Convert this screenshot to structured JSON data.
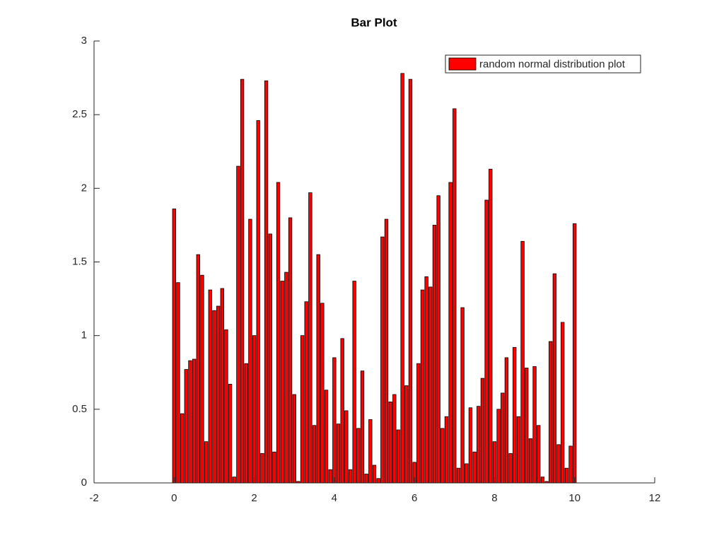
{
  "chart_data": {
    "type": "bar",
    "title": "Bar Plot",
    "x": [
      0,
      0.1,
      0.2,
      0.3,
      0.4,
      0.5,
      0.6,
      0.7,
      0.8,
      0.9,
      1,
      1.1,
      1.2,
      1.3,
      1.4,
      1.5,
      1.6,
      1.7,
      1.8,
      1.9,
      2,
      2.1,
      2.2,
      2.3,
      2.4,
      2.5,
      2.6,
      2.7,
      2.8,
      2.9,
      3,
      3.1,
      3.2,
      3.3,
      3.4,
      3.5,
      3.6,
      3.7,
      3.8,
      3.9,
      4,
      4.1,
      4.2,
      4.3,
      4.4,
      4.5,
      4.6,
      4.7,
      4.8,
      4.9,
      5,
      5.1,
      5.2,
      5.3,
      5.4,
      5.5,
      5.6,
      5.7,
      5.8,
      5.9,
      6,
      6.1,
      6.2,
      6.3,
      6.4,
      6.5,
      6.6,
      6.7,
      6.8,
      6.9,
      7,
      7.1,
      7.2,
      7.3,
      7.4,
      7.5,
      7.6,
      7.7,
      7.8,
      7.9,
      8,
      8.1,
      8.2,
      8.3,
      8.4,
      8.5,
      8.6,
      8.7,
      8.8,
      8.9,
      9,
      9.1,
      9.2,
      9.3,
      9.4,
      9.5,
      9.6,
      9.7,
      9.8,
      9.9,
      10
    ],
    "series": [
      {
        "name": "random normal distribution plot",
        "color": "#ff0000",
        "values": [
          1.86,
          1.36,
          0.47,
          0.77,
          0.83,
          0.84,
          1.55,
          1.41,
          0.28,
          1.31,
          1.17,
          1.2,
          1.32,
          1.04,
          0.67,
          0.04,
          2.15,
          2.74,
          0.81,
          1.79,
          1.0,
          2.46,
          0.2,
          2.73,
          1.69,
          0.21,
          2.04,
          1.37,
          1.43,
          1.8,
          0.6,
          0.01,
          1.0,
          1.23,
          1.97,
          0.39,
          1.55,
          1.22,
          0.63,
          0.09,
          0.85,
          0.4,
          0.98,
          0.49,
          0.09,
          1.37,
          0.37,
          0.76,
          0.06,
          0.43,
          0.12,
          0.03,
          1.67,
          1.79,
          0.55,
          0.6,
          0.36,
          2.78,
          0.66,
          2.74,
          0.14,
          0.81,
          1.31,
          1.4,
          1.33,
          1.75,
          1.95,
          0.37,
          0.45,
          2.04,
          2.54,
          0.1,
          1.19,
          0.13,
          0.51,
          0.21,
          0.52,
          0.71,
          1.92,
          2.13,
          0.28,
          0.5,
          0.61,
          0.85,
          0.2,
          0.92,
          0.45,
          1.64,
          0.78,
          0.3,
          0.79,
          0.39,
          0.04,
          0.01,
          0.96,
          1.42,
          0.26,
          1.09,
          0.1,
          0.25,
          1.76
        ]
      }
    ],
    "xlim": [
      -2,
      12
    ],
    "xticks": [
      -2,
      0,
      2,
      4,
      6,
      8,
      10,
      12
    ],
    "ylim": [
      0,
      3
    ],
    "yticks": [
      0,
      0.5,
      1,
      1.5,
      2,
      2.5,
      3
    ],
    "legend": "upper right"
  }
}
